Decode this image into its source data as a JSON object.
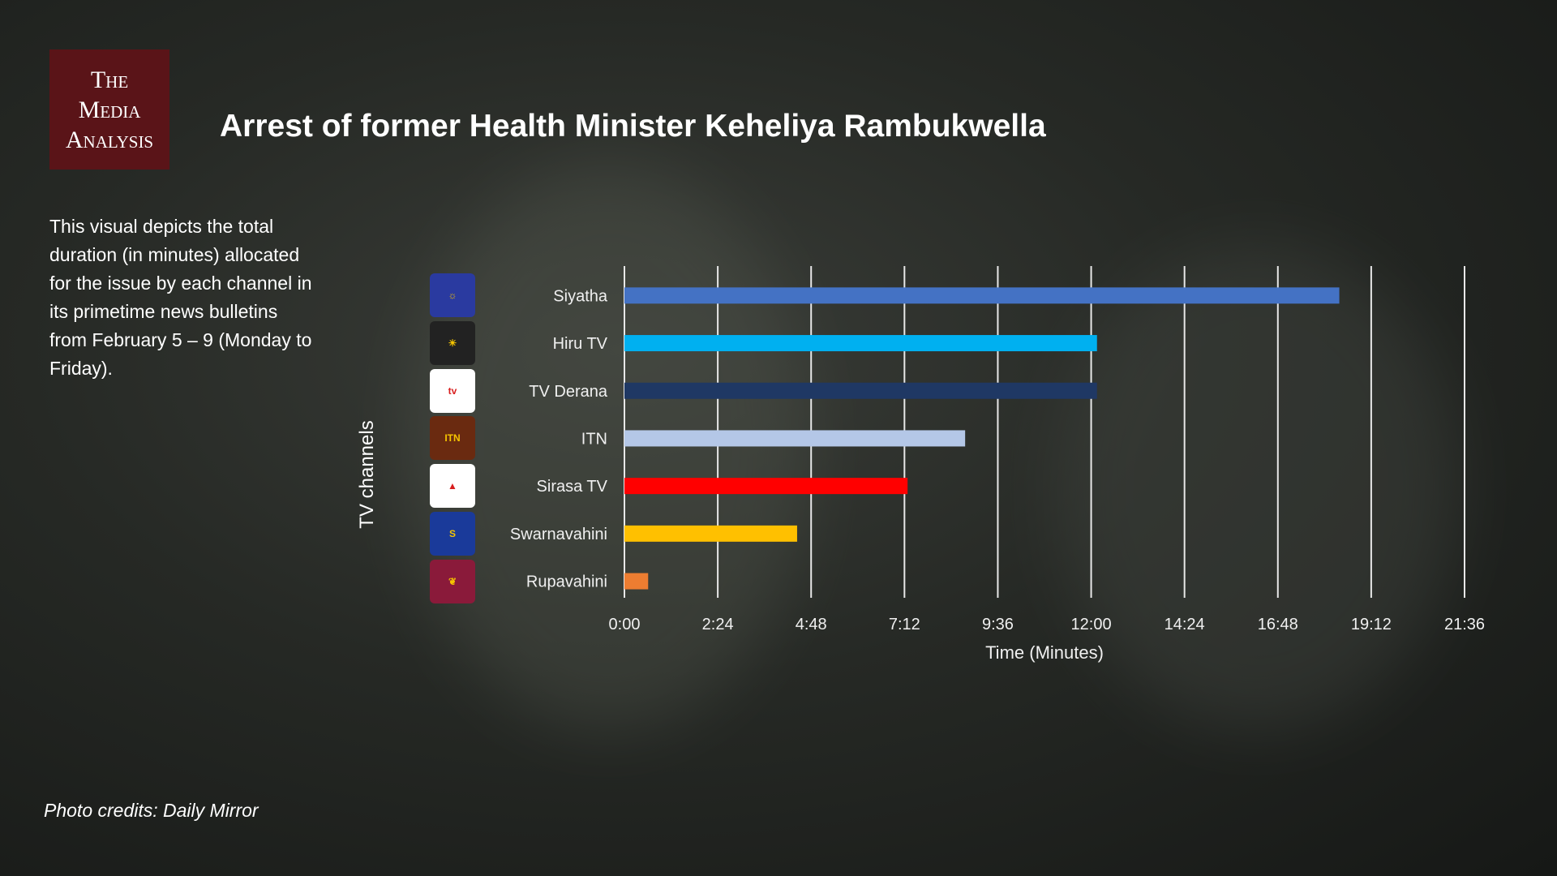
{
  "brand": {
    "line1": "The",
    "line2": "Media",
    "line3": "Analysis"
  },
  "title": "Arrest of former Health Minister Keheliya Rambukwella",
  "description": "This visual depicts the total duration (in minutes) allocated for the issue by each channel in its primetime news bulletins from February 5 – 9 (Monday to Friday).",
  "photo_credit": "Photo credits: Daily Mirror",
  "chart_data": {
    "type": "bar",
    "orientation": "horizontal",
    "title": "Arrest of former Health Minister Keheliya Rambukwella",
    "xlabel": "Time (Minutes)",
    "ylabel": "TV channels",
    "categories": [
      "Siyatha",
      "Hiru TV",
      "TV Derana",
      "ITN",
      "Sirasa TV",
      "Swarnavahini",
      "Rupavahini"
    ],
    "values_minutes": [
      18.38,
      12.15,
      12.15,
      8.76,
      7.28,
      4.44,
      0.61
    ],
    "values_label": [
      "18:23",
      "12:09",
      "12:09",
      "8:45",
      "7:17",
      "4:27",
      "0:37"
    ],
    "colors": [
      "#4472c4",
      "#00b0f0",
      "#1f3864",
      "#b4c7e7",
      "#ff0000",
      "#ffc000",
      "#ed7d31"
    ],
    "xlim": [
      0,
      21.6
    ],
    "xticks": [
      0,
      2.4,
      4.8,
      7.2,
      9.6,
      12,
      14.4,
      16.8,
      19.2,
      21.6
    ],
    "xtick_labels": [
      "0:00",
      "2:24",
      "4:48",
      "7:12",
      "9:36",
      "12:00",
      "14:24",
      "16:48",
      "19:12",
      "21:36"
    ],
    "grid": true,
    "legend": "none"
  }
}
